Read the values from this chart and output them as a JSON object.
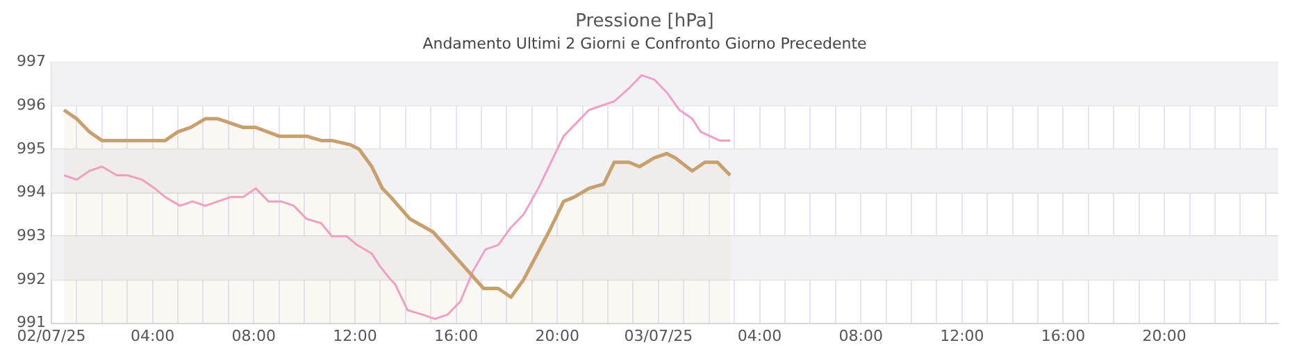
{
  "chart_data": {
    "type": "line",
    "title": "Pressione [hPa]",
    "subtitle": "Andamento Ultimi 2 Giorni e Confronto Giorno Precedente",
    "xlim": [
      "--07-02T00:00",
      "--07-04T00:30"
    ],
    "ylim": [
      991,
      997
    ],
    "yticks": [
      991,
      992,
      993,
      994,
      995,
      996,
      997
    ],
    "xticks": [
      {
        "value": "--07-02T00:00",
        "label": "02/07/25"
      },
      {
        "value": "--07-02T01:00",
        "label": null
      },
      {
        "value": "--07-02T02:00",
        "label": null
      },
      {
        "value": "--07-02T03:00",
        "label": null
      },
      {
        "value": "--07-02T04:00",
        "label": "04:00"
      },
      {
        "value": "--07-02T05:00",
        "label": null
      },
      {
        "value": "--07-02T06:00",
        "label": null
      },
      {
        "value": "--07-02T07:00",
        "label": null
      },
      {
        "value": "--07-02T08:00",
        "label": "08:00"
      },
      {
        "value": "--07-02T09:00",
        "label": null
      },
      {
        "value": "--07-02T10:00",
        "label": null
      },
      {
        "value": "--07-02T11:00",
        "label": null
      },
      {
        "value": "--07-02T12:00",
        "label": "12:00"
      },
      {
        "value": "--07-02T13:00",
        "label": null
      },
      {
        "value": "--07-02T14:00",
        "label": null
      },
      {
        "value": "--07-02T15:00",
        "label": null
      },
      {
        "value": "--07-02T16:00",
        "label": "16:00"
      },
      {
        "value": "--07-02T17:00",
        "label": null
      },
      {
        "value": "--07-02T18:00",
        "label": null
      },
      {
        "value": "--07-02T19:00",
        "label": null
      },
      {
        "value": "--07-02T20:00",
        "label": "20:00"
      },
      {
        "value": "--07-02T21:00",
        "label": null
      },
      {
        "value": "--07-02T22:00",
        "label": null
      },
      {
        "value": "--07-02T23:00",
        "label": null
      },
      {
        "value": "--07-03T00:00",
        "label": "03/07/25"
      },
      {
        "value": "--07-03T01:00",
        "label": null
      },
      {
        "value": "--07-03T02:00",
        "label": null
      },
      {
        "value": "--07-03T03:00",
        "label": null
      },
      {
        "value": "--07-03T04:00",
        "label": "04:00"
      },
      {
        "value": "--07-03T05:00",
        "label": null
      },
      {
        "value": "--07-03T06:00",
        "label": null
      },
      {
        "value": "--07-03T07:00",
        "label": null
      },
      {
        "value": "--07-03T08:00",
        "label": "08:00"
      },
      {
        "value": "--07-03T09:00",
        "label": null
      },
      {
        "value": "--07-03T10:00",
        "label": null
      },
      {
        "value": "--07-03T11:00",
        "label": null
      },
      {
        "value": "--07-03T12:00",
        "label": "12:00"
      },
      {
        "value": "--07-03T13:00",
        "label": null
      },
      {
        "value": "--07-03T14:00",
        "label": null
      },
      {
        "value": "--07-03T15:00",
        "label": null
      },
      {
        "value": "--07-03T16:00",
        "label": "16:00"
      },
      {
        "value": "--07-03T17:00",
        "label": null
      },
      {
        "value": "--07-03T18:00",
        "label": null
      },
      {
        "value": "--07-03T19:00",
        "label": null
      },
      {
        "value": "--07-03T20:00",
        "label": "20:00"
      },
      {
        "value": "--07-03T21:00",
        "label": null
      },
      {
        "value": "--07-03T22:00",
        "label": null
      },
      {
        "value": "--07-03T23:00",
        "label": null
      },
      {
        "value": "--07-04T00:00",
        "label": null
      }
    ],
    "grid": true,
    "marker": "none",
    "line_style": "solid",
    "bands": [
      {
        "axis": "y",
        "from": 996,
        "to": 997,
        "color": "#f2f2f4"
      },
      {
        "axis": "y",
        "from": 994,
        "to": 995,
        "color": "#f2f2f4"
      },
      {
        "axis": "y",
        "from": 992,
        "to": 993,
        "color": "#f2f2f4"
      }
    ],
    "series": [
      {
        "type": "area",
        "color": "#c8a070",
        "x": [
          "--07-02T00:30",
          "--07-02T01:00",
          "--07-02T01:30",
          "--07-02T02:00",
          "--07-02T04:30",
          "--07-02T05:00",
          "--07-02T05:30",
          "--07-02T06:05",
          "--07-02T06:35",
          "--07-02T07:05",
          "--07-02T07:35",
          "--07-02T08:05",
          "--07-02T09:00",
          "--07-02T10:05",
          "--07-02T10:40",
          "--07-02T11:05",
          "--07-02T11:50",
          "--07-02T12:10",
          "--07-02T12:40",
          "--07-02T13:05",
          "--07-02T13:25",
          "--07-02T14:10",
          "--07-02T15:05",
          "--07-02T16:10",
          "--07-02T17:05",
          "--07-02T17:40",
          "--07-02T18:10",
          "--07-02T18:40",
          "--07-02T19:40",
          "--07-02T20:15",
          "--07-02T20:40",
          "--07-02T21:15",
          "--07-02T21:50",
          "--07-02T22:15",
          "--07-02T22:50",
          "--07-02T23:15",
          "--07-02T23:50",
          "--07-03T00:20",
          "--07-03T00:40",
          "--07-03T01:20",
          "--07-03T01:50",
          "--07-03T02:20",
          "--07-03T02:50"
        ],
        "values": [
          995.9,
          995.7,
          995.4,
          995.2,
          995.2,
          995.4,
          995.5,
          995.7,
          995.7,
          995.6,
          995.5,
          995.5,
          995.3,
          995.3,
          995.2,
          995.2,
          995.1,
          995.0,
          994.6,
          994.1,
          993.9,
          993.4,
          993.1,
          992.4,
          991.8,
          991.8,
          991.6,
          992.0,
          993.1,
          993.8,
          993.9,
          994.1,
          994.2,
          994.7,
          994.7,
          994.6,
          994.8,
          994.9,
          994.8,
          994.5,
          994.7,
          994.7,
          994.4
        ]
      },
      {
        "type": "line",
        "color": "#f0a0c8",
        "x": [
          "--07-02T00:30",
          "--07-02T01:00",
          "--07-02T01:30",
          "--07-02T02:00",
          "--07-02T02:35",
          "--07-02T03:00",
          "--07-02T03:35",
          "--07-02T04:05",
          "--07-02T04:30",
          "--07-02T05:05",
          "--07-02T05:35",
          "--07-02T06:05",
          "--07-02T06:35",
          "--07-02T07:05",
          "--07-02T07:35",
          "--07-02T08:05",
          "--07-02T08:35",
          "--07-02T09:05",
          "--07-02T09:35",
          "--07-02T10:05",
          "--07-02T10:40",
          "--07-02T11:05",
          "--07-02T11:40",
          "--07-02T12:05",
          "--07-02T12:40",
          "--07-02T13:00",
          "--07-02T13:25",
          "--07-02T13:35",
          "--07-02T14:05",
          "--07-02T14:40",
          "--07-02T15:10",
          "--07-02T15:40",
          "--07-02T16:10",
          "--07-02T16:40",
          "--07-02T17:10",
          "--07-02T17:40",
          "--07-02T18:10",
          "--07-02T18:40",
          "--07-02T19:15",
          "--07-02T19:40",
          "--07-02T20:15",
          "--07-02T20:45",
          "--07-02T21:15",
          "--07-02T22:15",
          "--07-02T22:50",
          "--07-02T23:20",
          "--07-02T23:50",
          "--07-03T00:20",
          "--07-03T00:50",
          "--07-03T01:20",
          "--07-03T01:40",
          "--07-03T02:25",
          "--07-03T02:50"
        ],
        "values": [
          994.4,
          994.3,
          994.5,
          994.6,
          994.4,
          994.4,
          994.3,
          994.1,
          993.9,
          993.7,
          993.8,
          993.7,
          993.8,
          993.9,
          993.9,
          994.1,
          993.8,
          993.8,
          993.7,
          993.4,
          993.3,
          993.0,
          993.0,
          992.8,
          992.6,
          992.3,
          992.0,
          991.9,
          991.3,
          991.2,
          991.1,
          991.2,
          991.5,
          992.2,
          992.7,
          992.8,
          993.2,
          993.5,
          994.1,
          994.6,
          995.3,
          995.6,
          995.9,
          996.1,
          996.4,
          996.7,
          996.6,
          996.3,
          995.9,
          995.7,
          995.4,
          995.2,
          995.2
        ]
      }
    ]
  }
}
